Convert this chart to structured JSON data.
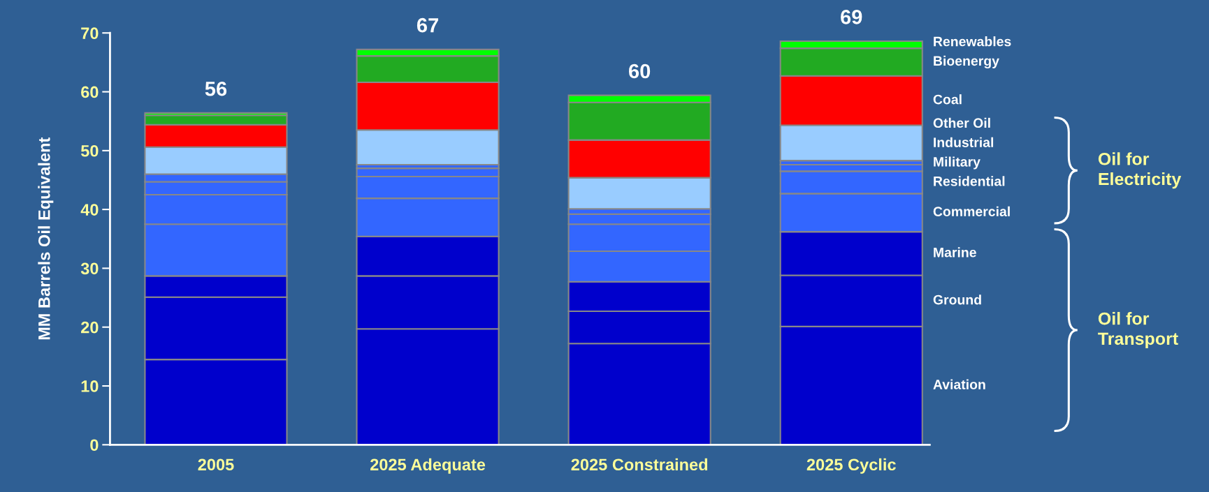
{
  "chart_data": {
    "type": "bar",
    "stacked": true,
    "ylabel": "MM Barrels Oil Equivalent",
    "categories": [
      "2005",
      "2025 Adequate",
      "2025 Constrained",
      "2025 Cyclic"
    ],
    "series": [
      {
        "name": "Aviation",
        "color": "#0000cc",
        "values": [
          14.5,
          19.7,
          17.2,
          20.1
        ]
      },
      {
        "name": "Ground",
        "color": "#0000cc",
        "values": [
          10.6,
          9.0,
          5.5,
          8.7
        ]
      },
      {
        "name": "Marine",
        "color": "#0000cc",
        "values": [
          3.6,
          6.7,
          5.0,
          7.4
        ]
      },
      {
        "name": "Commercial",
        "color": "#3366ff",
        "values": [
          8.8,
          6.5,
          5.2,
          6.5
        ]
      },
      {
        "name": "Residential",
        "color": "#3366ff",
        "values": [
          5.0,
          3.7,
          4.6,
          3.8
        ]
      },
      {
        "name": "Military",
        "color": "#3366ff",
        "values": [
          2.2,
          1.4,
          1.7,
          1.1
        ]
      },
      {
        "name": "Industrial",
        "color": "#3366ff",
        "values": [
          1.3,
          0.6,
          0.9,
          0.7
        ]
      },
      {
        "name": "Other Oil",
        "color": "#99ccff",
        "values": [
          4.6,
          5.9,
          5.3,
          6.0
        ]
      },
      {
        "name": "Coal",
        "color": "#ff0000",
        "values": [
          3.8,
          8.1,
          6.4,
          8.4
        ]
      },
      {
        "name": "Bioenergy",
        "color": "#22aa22",
        "values": [
          1.6,
          4.5,
          6.4,
          4.7
        ]
      },
      {
        "name": "Renewables",
        "color": "#00ff00",
        "values": [
          0.4,
          1.1,
          1.2,
          1.2
        ]
      }
    ],
    "totals": [
      "56",
      "67",
      "60",
      "69"
    ],
    "ylim": [
      0,
      70
    ],
    "yticks": [
      0,
      10,
      20,
      30,
      40,
      50,
      60,
      70
    ],
    "grid": false,
    "legend": "right",
    "annotations": [
      "Oil for\nElectricity",
      "Oil for\nTransport"
    ]
  }
}
